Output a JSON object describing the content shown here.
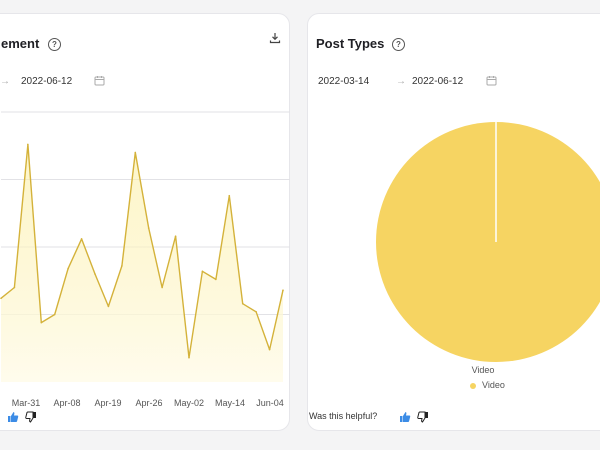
{
  "left_card": {
    "title": "ement",
    "date_end": "2022-06-12"
  },
  "right_card": {
    "title": "Post Types",
    "date_start": "2022-03-14",
    "date_end": "2022-06-12",
    "helpful_text": "Was this helpful?"
  },
  "icons": {
    "help": "question-circle-icon",
    "download": "download-icon",
    "calendar": "calendar-icon",
    "thumb_up": "thumbs-up-icon",
    "thumb_down": "thumbs-down-icon"
  },
  "colors": {
    "series": "#d4b23a",
    "pie": "#f6d462",
    "thumb_up": "#3c8ce6"
  },
  "chart_data": [
    {
      "type": "area",
      "title": "",
      "xlabel": "",
      "ylabel": "",
      "grid": true,
      "x_tick_labels": [
        "Mar-31",
        "Apr-08",
        "Apr-19",
        "Apr-26",
        "May-02",
        "May-14",
        "Jun-04"
      ],
      "ylim": [
        0,
        1
      ],
      "series": [
        {
          "values": [
            0.31,
            0.35,
            0.88,
            0.22,
            0.25,
            0.42,
            0.53,
            0.4,
            0.28,
            0.43,
            0.85,
            0.57,
            0.35,
            0.54,
            0.09,
            0.41,
            0.38,
            0.69,
            0.29,
            0.26,
            0.12,
            0.34
          ]
        }
      ]
    },
    {
      "type": "pie",
      "title": "",
      "slices": [
        {
          "label": "Video",
          "value": 100
        }
      ],
      "legend": [
        "Video"
      ],
      "legend_placement": "bottom"
    }
  ]
}
